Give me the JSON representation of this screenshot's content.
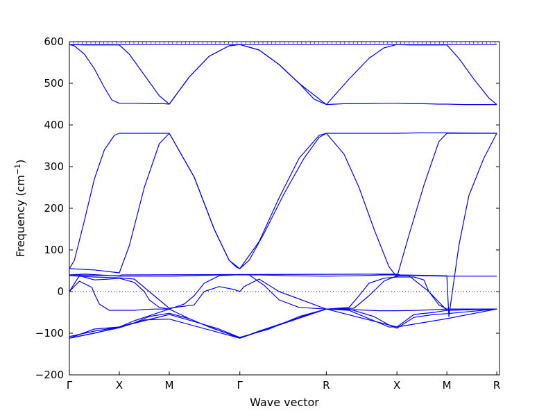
{
  "chart_data": {
    "type": "line",
    "title": "",
    "xlabel": "Wave vector",
    "ylabel": "Frequency (cm",
    "ylabel_superscript": "−1",
    "ylabel_close": ")",
    "ylim": [
      -200,
      600
    ],
    "yticks": [
      {
        "value": -200,
        "label": "−200"
      },
      {
        "value": -100,
        "label": "−100"
      },
      {
        "value": 0,
        "label": "0"
      },
      {
        "value": 100,
        "label": "100"
      },
      {
        "value": 200,
        "label": "200"
      },
      {
        "value": 300,
        "label": "300"
      },
      {
        "value": 400,
        "label": "400"
      },
      {
        "value": 500,
        "label": "500"
      },
      {
        "value": 600,
        "label": "600"
      }
    ],
    "xlim": [
      0,
      8.614
    ],
    "high_symmetry_points": [
      {
        "label": "Γ",
        "x": 0
      },
      {
        "label": "X",
        "x": 1.0
      },
      {
        "label": "M",
        "x": 2.0
      },
      {
        "label": "Γ",
        "x": 3.414
      },
      {
        "label": "R",
        "x": 5.146
      },
      {
        "label": "X",
        "x": 6.56
      },
      {
        "label": "M",
        "x": 7.56
      },
      {
        "label": "R",
        "x": 8.56
      }
    ],
    "line_color": "#0000ff",
    "zero_line": {
      "value": 0,
      "style": "dotted",
      "color": "#0000ff"
    },
    "series": [
      {
        "x": [
          0,
          0.1,
          0.3,
          0.5,
          0.7,
          0.85,
          1.0,
          1.3,
          1.6,
          1.9,
          2.0,
          2.4,
          2.8,
          3.2,
          3.414,
          3.8,
          4.2,
          4.6,
          4.9,
          5.146,
          5.5,
          5.9,
          6.3,
          6.56,
          6.8,
          7.1,
          7.4,
          7.56,
          7.9,
          8.2,
          8.56
        ],
        "values": [
          593,
          590,
          570,
          535,
          490,
          460,
          452,
          452,
          451,
          451,
          450,
          515,
          565,
          590,
          593,
          580,
          545,
          500,
          462,
          449,
          451,
          451,
          452,
          452,
          451,
          451,
          450,
          450,
          449,
          449,
          449
        ]
      },
      {
        "x": [
          0,
          0.3,
          0.6,
          1.0,
          1.2,
          1.5,
          1.8,
          2.0,
          2.4,
          2.8,
          3.2,
          3.414,
          3.8,
          4.2,
          4.6,
          5.146,
          5.6,
          6.0,
          6.3,
          6.56,
          6.8,
          7.1,
          7.4,
          7.56,
          7.8,
          8.1,
          8.4,
          8.56
        ],
        "values": [
          593,
          592,
          592,
          592,
          570,
          520,
          470,
          450,
          515,
          565,
          590,
          593,
          580,
          545,
          500,
          449,
          510,
          560,
          585,
          593,
          592,
          592,
          592,
          592,
          560,
          510,
          465,
          449
        ]
      },
      {
        "x": [
          0,
          8.56
        ],
        "values": [
          593,
          593
        ]
      },
      {
        "x": [
          0,
          0.1,
          0.3,
          0.5,
          0.7,
          0.9,
          1.0,
          1.5,
          2.0,
          2.5,
          2.9,
          3.2,
          3.35,
          3.414,
          3.6,
          3.9,
          4.3,
          4.7,
          5.0,
          5.146,
          5.5,
          5.9,
          6.3,
          6.56,
          7.0,
          7.56,
          8.56
        ],
        "values": [
          55,
          75,
          170,
          270,
          340,
          375,
          380,
          380,
          380,
          275,
          150,
          75,
          58,
          55,
          75,
          140,
          235,
          320,
          370,
          380,
          380,
          380,
          380,
          380,
          381,
          381,
          380
        ]
      },
      {
        "x": [
          0,
          0.5,
          1.0,
          1.2,
          1.5,
          1.8,
          2.0,
          2.5,
          2.9,
          3.2,
          3.414,
          3.8,
          4.2,
          4.6,
          5.0,
          5.146,
          5.5,
          5.8,
          6.1,
          6.4,
          6.56,
          6.8,
          7.1,
          7.4,
          7.56,
          8.0,
          8.56
        ],
        "values": [
          55,
          52,
          45,
          110,
          250,
          355,
          380,
          275,
          150,
          75,
          55,
          120,
          225,
          320,
          375,
          380,
          330,
          250,
          150,
          60,
          35,
          135,
          255,
          360,
          380,
          380,
          380
        ]
      },
      {
        "x": [
          0,
          1.0,
          1.05,
          6.56,
          6.62,
          7.56,
          7.6,
          7.8,
          8.0,
          8.3,
          8.56
        ],
        "values": [
          40,
          38,
          40,
          42,
          40,
          38,
          -60,
          110,
          230,
          320,
          380
        ]
      },
      {
        "x": [
          0,
          0.3,
          0.6,
          1.0,
          1.5,
          2.0,
          2.5,
          3.0,
          3.414,
          3.8,
          4.4,
          5.146,
          5.8,
          6.3,
          6.56,
          7.0,
          7.56,
          8.56
        ],
        "values": [
          40,
          42,
          40,
          37,
          37,
          37,
          38,
          40,
          40,
          40,
          38,
          37,
          38,
          40,
          40,
          38,
          37,
          37
        ]
      },
      {
        "x": [
          0,
          0.2,
          0.45,
          0.5,
          0.6,
          0.8,
          1.0,
          1.3,
          1.5,
          1.7,
          2.0
        ],
        "values": [
          0,
          25,
          10,
          -5,
          -30,
          -45,
          -45,
          -45,
          -43,
          -42,
          -42
        ]
      },
      {
        "x": [
          0,
          0.2,
          0.5,
          0.8,
          1.0,
          1.3,
          1.5,
          1.6,
          1.8,
          2.0,
          2.3,
          2.5,
          2.7,
          3.0,
          3.3,
          3.414,
          3.6,
          3.9,
          4.2,
          4.6,
          5.146,
          5.6,
          5.8,
          6.0,
          6.3,
          6.56,
          6.9,
          7.1,
          7.2,
          7.4,
          7.56,
          8.56
        ],
        "values": [
          0,
          38,
          28,
          30,
          32,
          22,
          0,
          -20,
          -38,
          -42,
          -30,
          -10,
          20,
          38,
          40,
          41,
          40,
          15,
          -20,
          -38,
          -42,
          -38,
          -10,
          20,
          32,
          35,
          35,
          28,
          0,
          -32,
          -42,
          -42
        ]
      },
      {
        "x": [
          0,
          0.5,
          1.0,
          1.3,
          1.6,
          2.0,
          2.5,
          2.7,
          3.0,
          3.3,
          3.414,
          3.5,
          3.8,
          4.2,
          5.146,
          5.7,
          6.0,
          6.3,
          6.56,
          6.8,
          7.2,
          7.56,
          8.56
        ],
        "values": [
          38,
          35,
          33,
          30,
          0,
          -40,
          -32,
          0,
          12,
          5,
          0,
          12,
          30,
          0,
          -42,
          -40,
          -10,
          25,
          38,
          38,
          0,
          -45,
          -42
        ]
      },
      {
        "x": [
          0,
          0.5,
          1.0,
          1.3,
          1.6,
          2.0,
          2.4,
          2.8,
          3.2,
          3.414,
          3.8,
          4.3,
          4.8,
          5.146,
          5.6,
          6.1,
          6.4,
          6.56,
          6.9,
          7.3,
          7.56,
          8.56
        ],
        "values": [
          -112,
          -100,
          -85,
          -75,
          -60,
          -52,
          -65,
          -85,
          -102,
          -112,
          -95,
          -75,
          -55,
          -42,
          -42,
          -60,
          -80,
          -88,
          -62,
          -55,
          -53,
          -42
        ]
      },
      {
        "x": [
          0,
          0.5,
          1.0,
          1.3,
          1.6,
          2.0,
          2.4,
          2.8,
          3.2,
          3.414,
          3.8,
          4.3,
          4.8,
          5.146,
          5.6,
          6.1,
          6.4,
          6.56,
          6.9,
          7.3,
          7.56,
          8.56
        ],
        "values": [
          -112,
          -90,
          -85,
          -70,
          -58,
          -42,
          -65,
          -85,
          -102,
          -112,
          -95,
          -75,
          -55,
          -42,
          -45,
          -70,
          -85,
          -85,
          -55,
          -50,
          -45,
          -42
        ]
      },
      {
        "x": [
          0,
          0.5,
          1.0,
          1.5,
          2.0,
          2.5,
          3.0,
          3.414,
          4.0,
          4.6,
          5.146,
          5.8,
          6.2,
          6.56,
          7.0,
          7.56,
          8.56
        ],
        "values": [
          -108,
          -95,
          -85,
          -70,
          -55,
          -72,
          -90,
          -110,
          -90,
          -60,
          -42,
          -44,
          -46,
          -46,
          -45,
          -42,
          -42
        ]
      },
      {
        "x": [
          0,
          1.0,
          1.5,
          2.0,
          3.414,
          5.146,
          6.56,
          7.56,
          8.56
        ],
        "values": [
          -112,
          -87,
          -68,
          -66,
          -112,
          -42,
          -85,
          -65,
          -42
        ]
      }
    ]
  }
}
